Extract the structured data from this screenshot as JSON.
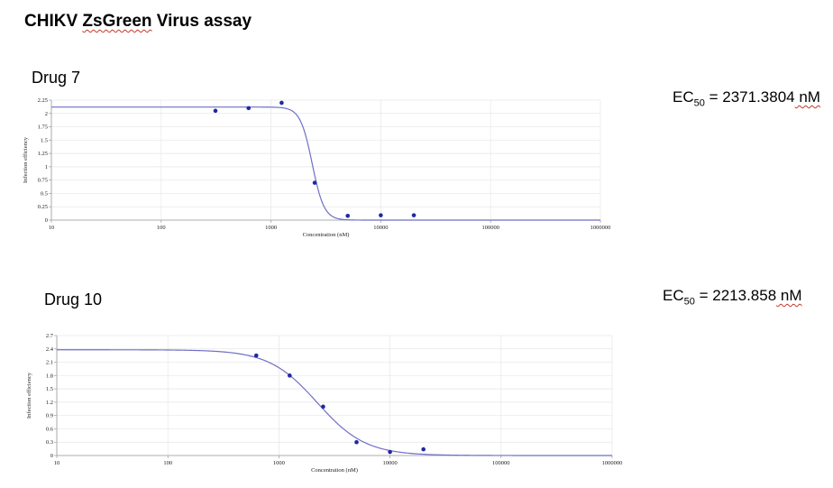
{
  "page": {
    "title_part1": "CHIKV ",
    "title_part2": "ZsGreen",
    "title_part3": " Virus assay"
  },
  "colors": {
    "point": "#1f2a9c",
    "curve": "#6f6fc7",
    "grid": "#e6e6e6",
    "axis": "#9a9a9a"
  },
  "chart_data": [
    {
      "type": "scatter",
      "title": "Drug 7",
      "ec50_label": "EC",
      "ec50_sub": "50",
      "ec50_eq": " = ",
      "ec50_value": "2371.3804",
      "ec50_unit": " nM",
      "xlabel": "Concentration (nM)",
      "ylabel": "Infection efficiency",
      "x_scale": "log",
      "xlim": [
        10,
        1000000
      ],
      "ylim": [
        0,
        2.25
      ],
      "x_ticks": [
        10,
        100,
        1000,
        10000,
        100000,
        1000000
      ],
      "x_tick_labels": [
        "10",
        "100",
        "1000",
        "10000",
        "100000",
        "1000000"
      ],
      "y_ticks": [
        0,
        0.25,
        0.5,
        0.75,
        1,
        1.25,
        1.5,
        1.75,
        2,
        2.25
      ],
      "y_tick_labels": [
        "0",
        "0.25",
        "0.5",
        "0.75",
        "1",
        "1.25",
        "1.5",
        "1.75",
        "2",
        "2.25"
      ],
      "grid": true,
      "points": [
        {
          "x": 312,
          "y": 2.05
        },
        {
          "x": 625,
          "y": 2.1
        },
        {
          "x": 1250,
          "y": 2.2
        },
        {
          "x": 2500,
          "y": 0.7
        },
        {
          "x": 5000,
          "y": 0.08
        },
        {
          "x": 10000,
          "y": 0.09
        },
        {
          "x": 20000,
          "y": 0.09
        }
      ],
      "fit": {
        "top": 2.12,
        "bottom": 0,
        "ec50": 2371.3804,
        "hill": 8
      }
    },
    {
      "type": "scatter",
      "title": "Drug 10",
      "ec50_label": "EC",
      "ec50_sub": "50",
      "ec50_eq": " = ",
      "ec50_value": "2213.858",
      "ec50_unit": " nM",
      "xlabel": "Concentration (nM)",
      "ylabel": "Infection efficiency",
      "x_scale": "log",
      "xlim": [
        10,
        1000000
      ],
      "ylim": [
        0,
        2.7
      ],
      "x_ticks": [
        10,
        100,
        1000,
        10000,
        100000,
        1000000
      ],
      "x_tick_labels": [
        "10",
        "100",
        "1000",
        "10000",
        "100000",
        "1000000"
      ],
      "y_ticks": [
        0,
        0.3,
        0.6,
        0.9,
        1.2,
        1.5,
        1.8,
        2.1,
        2.4,
        2.7
      ],
      "y_tick_labels": [
        "0",
        "0.3",
        "0.6",
        "0.9",
        "1.2",
        "1.5",
        "1.8",
        "2.1",
        "2.4",
        "2.7"
      ],
      "grid": true,
      "points": [
        {
          "x": 625,
          "y": 2.25
        },
        {
          "x": 1250,
          "y": 1.8
        },
        {
          "x": 2500,
          "y": 1.1
        },
        {
          "x": 5000,
          "y": 0.3
        },
        {
          "x": 10000,
          "y": 0.08
        },
        {
          "x": 20000,
          "y": 0.14
        }
      ],
      "fit": {
        "top": 2.38,
        "bottom": 0,
        "ec50": 2213.858,
        "hill": 2
      }
    }
  ]
}
